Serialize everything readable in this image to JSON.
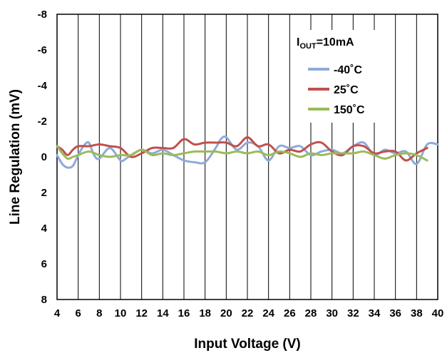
{
  "chart_data": {
    "type": "line",
    "xlabel": "Input Voltage (V)",
    "ylabel": "Line Regulation (mV)",
    "xlim": [
      4,
      40
    ],
    "ylim": [
      -8,
      8
    ],
    "y_inverted": true,
    "x_ticks": [
      4,
      6,
      8,
      10,
      12,
      14,
      16,
      18,
      20,
      22,
      24,
      26,
      28,
      30,
      32,
      34,
      36,
      38,
      40
    ],
    "y_ticks": [
      -8,
      -6,
      -4,
      -2,
      0,
      2,
      4,
      6,
      8
    ],
    "grid": "vertical",
    "legend": {
      "position": "top-right",
      "title_main": "I",
      "title_sub": "OUT",
      "title_rest": "=10mA"
    },
    "series": [
      {
        "name": "-40˚C",
        "color": "#8eaad9",
        "x": [
          4,
          4.5,
          5,
          5.5,
          6,
          6.5,
          7,
          7.5,
          8,
          9,
          10,
          10.5,
          11,
          12,
          13,
          14,
          15,
          16,
          17,
          18,
          19,
          19.5,
          20,
          21,
          22,
          23,
          24,
          25,
          26,
          27,
          28,
          29,
          30,
          31,
          32,
          33,
          34,
          35,
          36,
          37,
          38,
          39,
          40
        ],
        "y": [
          -0.1,
          0.4,
          0.6,
          0.5,
          -0.1,
          -0.6,
          -0.8,
          -0.1,
          0.1,
          -0.5,
          0.2,
          0.1,
          -0.1,
          -0.4,
          -0.2,
          -0.4,
          -0.1,
          0.2,
          0.3,
          0.3,
          -0.5,
          -1.0,
          -1.1,
          -0.4,
          -0.8,
          -0.6,
          0.2,
          -0.6,
          -0.5,
          -0.6,
          -0.1,
          -0.3,
          -0.4,
          -0.2,
          -0.6,
          -0.8,
          -0.1,
          -0.4,
          -0.2,
          -0.3,
          0.4,
          -0.7,
          -0.7
        ]
      },
      {
        "name": "25˚C",
        "color": "#c0504d",
        "x": [
          4,
          4.5,
          5,
          5.5,
          6,
          7,
          8,
          9,
          10,
          11,
          12,
          13,
          14,
          15,
          16,
          17,
          18,
          19,
          20,
          21,
          22,
          23,
          24,
          25,
          26,
          27,
          28,
          29,
          30,
          31,
          32,
          33,
          34,
          35,
          36,
          37,
          38,
          39
        ],
        "y": [
          -0.6,
          -0.4,
          -0.1,
          -0.4,
          -0.6,
          -0.6,
          -0.7,
          -0.6,
          -0.5,
          0.0,
          -0.2,
          -0.5,
          -0.5,
          -0.5,
          -1.0,
          -0.7,
          -0.8,
          -0.8,
          -0.8,
          -0.6,
          -1.1,
          -0.6,
          -0.7,
          -0.2,
          -0.4,
          -0.3,
          -0.7,
          -0.8,
          -0.3,
          -0.1,
          -0.6,
          -0.6,
          -0.2,
          -0.3,
          -0.3,
          0.2,
          -0.2,
          -0.5
        ]
      },
      {
        "name": "150˚C",
        "color": "#9bbb59",
        "x": [
          4,
          4.5,
          5,
          5.5,
          6,
          7,
          8,
          9,
          10,
          11,
          12,
          13,
          14,
          15,
          16,
          17,
          18,
          19,
          20,
          21,
          22,
          23,
          24,
          25,
          26,
          27,
          28,
          29,
          30,
          31,
          32,
          33,
          34,
          35,
          36,
          37,
          38,
          39
        ],
        "y": [
          -0.6,
          -0.2,
          0.1,
          0.0,
          -0.1,
          -0.3,
          -0.1,
          0.0,
          -0.1,
          -0.1,
          -0.4,
          -0.1,
          -0.2,
          -0.1,
          -0.2,
          -0.3,
          -0.3,
          -0.3,
          -0.2,
          -0.3,
          -0.2,
          -0.3,
          -0.1,
          -0.3,
          -0.2,
          0.0,
          -0.2,
          -0.1,
          -0.2,
          -0.2,
          -0.2,
          -0.3,
          -0.1,
          0.1,
          -0.1,
          -0.2,
          -0.1,
          0.2
        ]
      }
    ]
  }
}
